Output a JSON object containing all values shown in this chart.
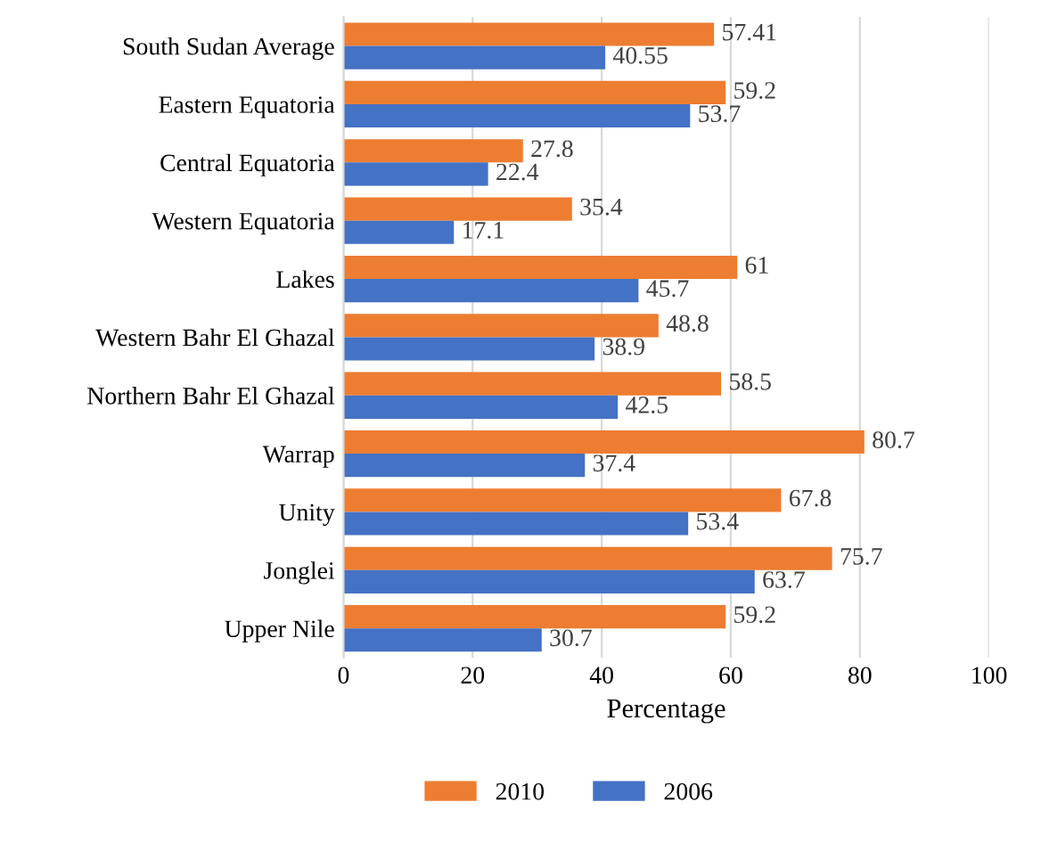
{
  "chart_data": {
    "type": "bar",
    "orientation": "horizontal",
    "xlabel": "Percentage",
    "categories": [
      "South Sudan Average",
      "Eastern Equatoria",
      "Central Equatoria",
      "Western Equatoria",
      "Lakes",
      "Western Bahr El Ghazal",
      "Northern Bahr El Ghazal",
      "Warrap",
      "Unity",
      "Jonglei",
      "Upper Nile"
    ],
    "series": [
      {
        "name": "2010",
        "color": "#ed7d31",
        "values": [
          57.41,
          59.2,
          27.8,
          35.4,
          61,
          48.8,
          58.5,
          80.7,
          67.8,
          75.7,
          59.2
        ]
      },
      {
        "name": "2006",
        "color": "#4472c4",
        "values": [
          40.55,
          53.7,
          22.4,
          17.1,
          45.7,
          38.9,
          42.5,
          37.4,
          53.4,
          63.7,
          30.7
        ]
      }
    ],
    "xlim": [
      0,
      100
    ],
    "xticks": [
      0,
      20,
      40,
      60,
      80,
      100
    ],
    "grid": "x",
    "legend": "bottom",
    "data_labels": true
  }
}
